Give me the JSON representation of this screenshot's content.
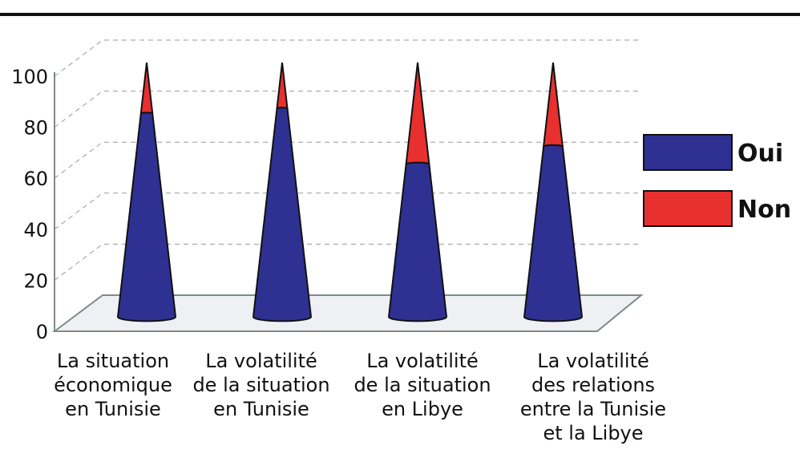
{
  "chart_data": {
    "type": "cone",
    "categories": [
      "La situation\néconomique\nen Tunisie",
      "La volatilité\nde la situation\nen Tunisie",
      "La volatilité\nde la situation\nen Libye",
      "La volatilité\ndes relations\nentre la Tunisie\net la Libye"
    ],
    "series": [
      {
        "name": "Oui",
        "color": "#2e3192",
        "values": [
          80,
          82,
          60,
          67
        ]
      },
      {
        "name": "Non",
        "color": "#e8302f",
        "values": [
          20,
          18,
          40,
          33
        ]
      }
    ],
    "ylim": [
      0,
      100
    ],
    "yticks": [
      0,
      20,
      40,
      60,
      80,
      100
    ],
    "grid": true,
    "legend": "right"
  }
}
